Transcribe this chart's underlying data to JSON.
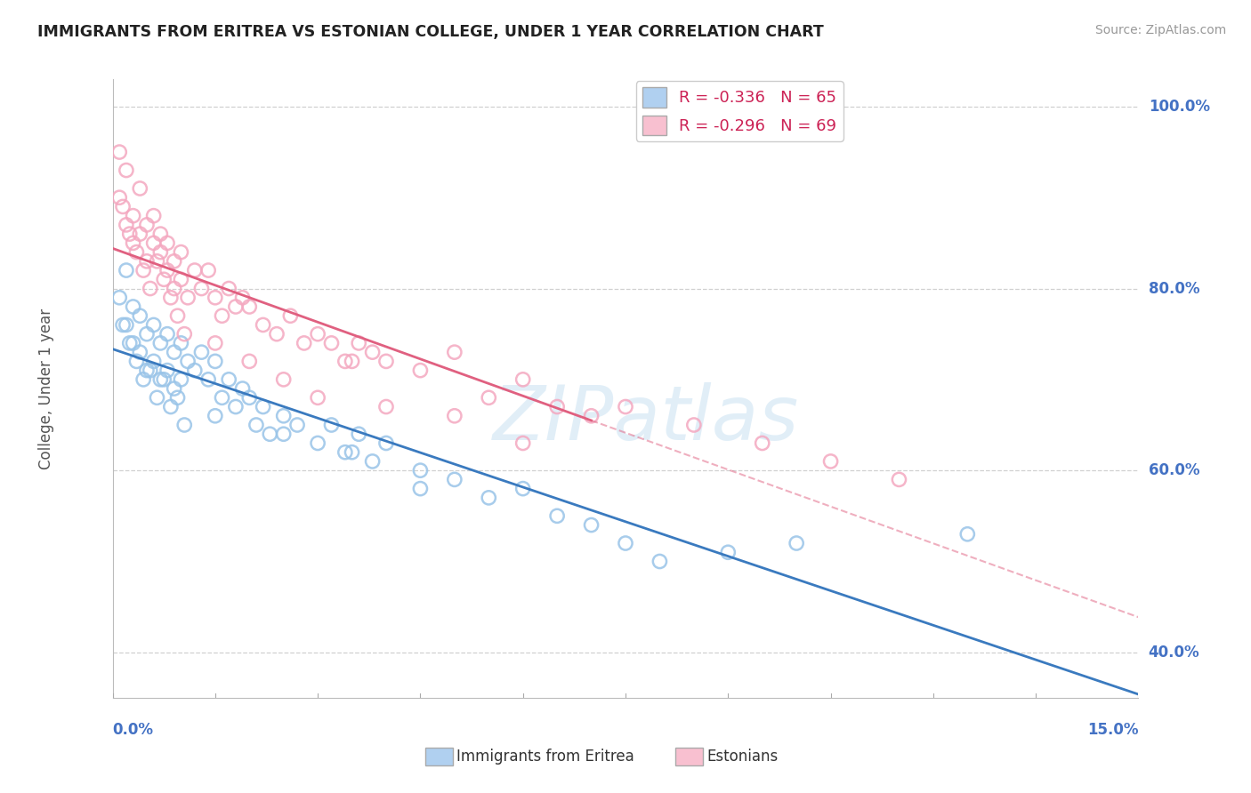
{
  "title": "IMMIGRANTS FROM ERITREA VS ESTONIAN COLLEGE, UNDER 1 YEAR CORRELATION CHART",
  "source": "Source: ZipAtlas.com",
  "ylabel_label": "College, Under 1 year",
  "xmin": 0.0,
  "xmax": 15.0,
  "ymin": 35.0,
  "ymax": 103.0,
  "yticks": [
    40.0,
    60.0,
    80.0,
    100.0
  ],
  "ytick_labels": [
    "40.0%",
    "60.0%",
    "80.0%",
    "100.0%"
  ],
  "xtick_left": "0.0%",
  "xtick_right": "15.0%",
  "series": [
    {
      "name": "Immigrants from Eritrea",
      "R": -0.336,
      "N": 65,
      "scatter_color": "#99c4e8",
      "line_color": "#3a7abf",
      "line_solid_end": 15.0,
      "x": [
        0.1,
        0.2,
        0.2,
        0.3,
        0.3,
        0.4,
        0.4,
        0.5,
        0.5,
        0.6,
        0.6,
        0.7,
        0.7,
        0.8,
        0.8,
        0.9,
        0.9,
        1.0,
        1.0,
        1.1,
        1.2,
        1.3,
        1.4,
        1.5,
        1.6,
        1.7,
        1.8,
        1.9,
        2.0,
        2.1,
        2.2,
        2.3,
        2.5,
        2.7,
        3.0,
        3.2,
        3.4,
        3.6,
        3.8,
        4.0,
        4.5,
        5.0,
        5.5,
        6.0,
        6.5,
        7.0,
        7.5,
        8.0,
        9.0,
        10.0,
        12.5,
        0.15,
        0.25,
        0.35,
        0.45,
        0.55,
        0.65,
        0.75,
        0.85,
        0.95,
        1.05,
        1.5,
        2.5,
        3.5,
        4.5
      ],
      "y": [
        79,
        76,
        82,
        78,
        74,
        77,
        73,
        75,
        71,
        76,
        72,
        74,
        70,
        75,
        71,
        73,
        69,
        74,
        70,
        72,
        71,
        73,
        70,
        72,
        68,
        70,
        67,
        69,
        68,
        65,
        67,
        64,
        66,
        65,
        63,
        65,
        62,
        64,
        61,
        63,
        60,
        59,
        57,
        58,
        55,
        54,
        52,
        50,
        51,
        52,
        53,
        76,
        74,
        72,
        70,
        71,
        68,
        70,
        67,
        68,
        65,
        66,
        64,
        62,
        58
      ]
    },
    {
      "name": "Estonians",
      "R": -0.296,
      "N": 69,
      "scatter_color": "#f4a8c0",
      "line_color": "#e06080",
      "line_solid_end": 7.0,
      "x": [
        0.1,
        0.1,
        0.2,
        0.2,
        0.3,
        0.3,
        0.4,
        0.4,
        0.5,
        0.5,
        0.6,
        0.6,
        0.7,
        0.7,
        0.8,
        0.8,
        0.9,
        0.9,
        1.0,
        1.0,
        1.1,
        1.2,
        1.3,
        1.4,
        1.5,
        1.6,
        1.7,
        1.8,
        1.9,
        2.0,
        2.2,
        2.4,
        2.6,
        2.8,
        3.0,
        3.2,
        3.4,
        3.6,
        3.8,
        4.0,
        4.5,
        5.0,
        5.5,
        6.0,
        6.5,
        7.0,
        0.15,
        0.25,
        0.35,
        0.45,
        0.55,
        0.65,
        0.75,
        0.85,
        0.95,
        1.05,
        1.5,
        2.0,
        2.5,
        3.0,
        3.5,
        4.0,
        5.0,
        6.0,
        7.5,
        8.5,
        9.5,
        10.5,
        11.5
      ],
      "y": [
        90,
        95,
        87,
        93,
        85,
        88,
        86,
        91,
        83,
        87,
        85,
        88,
        84,
        86,
        82,
        85,
        80,
        83,
        81,
        84,
        79,
        82,
        80,
        82,
        79,
        77,
        80,
        78,
        79,
        78,
        76,
        75,
        77,
        74,
        75,
        74,
        72,
        74,
        73,
        72,
        71,
        73,
        68,
        70,
        67,
        66,
        89,
        86,
        84,
        82,
        80,
        83,
        81,
        79,
        77,
        75,
        74,
        72,
        70,
        68,
        72,
        67,
        66,
        63,
        67,
        65,
        63,
        61,
        59
      ]
    }
  ],
  "watermark": "ZIPatlas",
  "background_color": "#ffffff",
  "grid_color": "#d0d0d0",
  "title_color": "#222222",
  "axis_value_color": "#4472c4",
  "legend_text_color": "#cc2255",
  "legend_blue_patch": "#b0d0f0",
  "legend_pink_patch": "#f8c0d0"
}
